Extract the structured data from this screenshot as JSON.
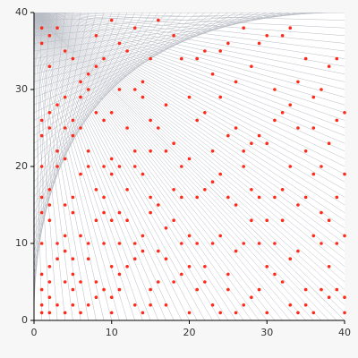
{
  "chart_data": {
    "type": "scatter",
    "color": "#ff2a1a",
    "xlim": [
      0,
      40
    ],
    "ylim": [
      0,
      40
    ],
    "xticks": [
      0,
      10,
      20,
      30,
      40
    ],
    "yticks": [
      0,
      10,
      20,
      30,
      40
    ],
    "points": [
      [
        1,
        1
      ],
      [
        1,
        2
      ],
      [
        1,
        4
      ],
      [
        1,
        6
      ],
      [
        1,
        10
      ],
      [
        1,
        14
      ],
      [
        1,
        16
      ],
      [
        1,
        20
      ],
      [
        1,
        24
      ],
      [
        1,
        26
      ],
      [
        1,
        36
      ],
      [
        1,
        38
      ],
      [
        2,
        1
      ],
      [
        2,
        3
      ],
      [
        2,
        5
      ],
      [
        2,
        7
      ],
      [
        2,
        13
      ],
      [
        2,
        15
      ],
      [
        2,
        17
      ],
      [
        2,
        25
      ],
      [
        2,
        27
      ],
      [
        2,
        33
      ],
      [
        2,
        37
      ],
      [
        3,
        2
      ],
      [
        3,
        8
      ],
      [
        3,
        10
      ],
      [
        3,
        20
      ],
      [
        3,
        22
      ],
      [
        3,
        28
      ],
      [
        3,
        38
      ],
      [
        4,
        1
      ],
      [
        4,
        5
      ],
      [
        4,
        9
      ],
      [
        4,
        11
      ],
      [
        4,
        15
      ],
      [
        4,
        21
      ],
      [
        4,
        25
      ],
      [
        4,
        29
      ],
      [
        4,
        35
      ],
      [
        5,
        2
      ],
      [
        5,
        4
      ],
      [
        5,
        6
      ],
      [
        5,
        8
      ],
      [
        5,
        14
      ],
      [
        5,
        16
      ],
      [
        5,
        24
      ],
      [
        5,
        26
      ],
      [
        5,
        34
      ],
      [
        6,
        1
      ],
      [
        6,
        5
      ],
      [
        6,
        11
      ],
      [
        6,
        19
      ],
      [
        6,
        25
      ],
      [
        6,
        29
      ],
      [
        6,
        31
      ],
      [
        7,
        2
      ],
      [
        7,
        8
      ],
      [
        7,
        10
      ],
      [
        7,
        20
      ],
      [
        7,
        22
      ],
      [
        7,
        30
      ],
      [
        7,
        32
      ],
      [
        8,
        3
      ],
      [
        8,
        5
      ],
      [
        8,
        13
      ],
      [
        8,
        17
      ],
      [
        8,
        27
      ],
      [
        8,
        33
      ],
      [
        8,
        37
      ],
      [
        9,
        4
      ],
      [
        9,
        10
      ],
      [
        9,
        14
      ],
      [
        9,
        16
      ],
      [
        9,
        20
      ],
      [
        9,
        26
      ],
      [
        9,
        34
      ],
      [
        10,
        1
      ],
      [
        10,
        3
      ],
      [
        10,
        7
      ],
      [
        10,
        13
      ],
      [
        10,
        19
      ],
      [
        10,
        21
      ],
      [
        10,
        27
      ],
      [
        10,
        39
      ],
      [
        11,
        4
      ],
      [
        11,
        6
      ],
      [
        11,
        10
      ],
      [
        11,
        14
      ],
      [
        11,
        20
      ],
      [
        11,
        30
      ],
      [
        11,
        36
      ],
      [
        12,
        7
      ],
      [
        12,
        13
      ],
      [
        12,
        17
      ],
      [
        12,
        25
      ],
      [
        12,
        35
      ],
      [
        13,
        2
      ],
      [
        13,
        8
      ],
      [
        13,
        10
      ],
      [
        13,
        20
      ],
      [
        13,
        22
      ],
      [
        13,
        30
      ],
      [
        13,
        38
      ],
      [
        14,
        1
      ],
      [
        14,
        9
      ],
      [
        14,
        11
      ],
      [
        14,
        19
      ],
      [
        14,
        29
      ],
      [
        14,
        31
      ],
      [
        15,
        2
      ],
      [
        15,
        4
      ],
      [
        15,
        14
      ],
      [
        15,
        16
      ],
      [
        15,
        22
      ],
      [
        15,
        26
      ],
      [
        15,
        34
      ],
      [
        16,
        5
      ],
      [
        16,
        9
      ],
      [
        16,
        15
      ],
      [
        16,
        25
      ],
      [
        16,
        39
      ],
      [
        17,
        2
      ],
      [
        17,
        8
      ],
      [
        17,
        12
      ],
      [
        17,
        22
      ],
      [
        17,
        28
      ],
      [
        18,
        5
      ],
      [
        18,
        13
      ],
      [
        18,
        17
      ],
      [
        18,
        23
      ],
      [
        18,
        37
      ],
      [
        19,
        6
      ],
      [
        19,
        10
      ],
      [
        19,
        16
      ],
      [
        19,
        20
      ],
      [
        19,
        34
      ],
      [
        20,
        1
      ],
      [
        20,
        7
      ],
      [
        20,
        11
      ],
      [
        20,
        21
      ],
      [
        20,
        29
      ],
      [
        21,
        4
      ],
      [
        21,
        10
      ],
      [
        21,
        16
      ],
      [
        21,
        26
      ],
      [
        21,
        34
      ],
      [
        22,
        5
      ],
      [
        22,
        7
      ],
      [
        22,
        17
      ],
      [
        22,
        27
      ],
      [
        22,
        35
      ],
      [
        23,
        2
      ],
      [
        23,
        10
      ],
      [
        23,
        18
      ],
      [
        23,
        22
      ],
      [
        23,
        32
      ],
      [
        24,
        1
      ],
      [
        24,
        11
      ],
      [
        24,
        19
      ],
      [
        24,
        29
      ],
      [
        24,
        35
      ],
      [
        25,
        4
      ],
      [
        25,
        6
      ],
      [
        25,
        16
      ],
      [
        25,
        24
      ],
      [
        25,
        36
      ],
      [
        26,
        1
      ],
      [
        26,
        9
      ],
      [
        26,
        15
      ],
      [
        26,
        25
      ],
      [
        26,
        31
      ],
      [
        27,
        2
      ],
      [
        27,
        10
      ],
      [
        27,
        20
      ],
      [
        27,
        22
      ],
      [
        27,
        38
      ],
      [
        28,
        3
      ],
      [
        28,
        13
      ],
      [
        28,
        17
      ],
      [
        28,
        23
      ],
      [
        28,
        33
      ],
      [
        29,
        4
      ],
      [
        29,
        10
      ],
      [
        29,
        16
      ],
      [
        29,
        24
      ],
      [
        29,
        36
      ],
      [
        30,
        1
      ],
      [
        30,
        7
      ],
      [
        30,
        13
      ],
      [
        30,
        23
      ],
      [
        30,
        37
      ],
      [
        31,
        6
      ],
      [
        31,
        10
      ],
      [
        31,
        16
      ],
      [
        31,
        26
      ],
      [
        31,
        30
      ],
      [
        32,
        5
      ],
      [
        32,
        13
      ],
      [
        32,
        17
      ],
      [
        32,
        27
      ],
      [
        32,
        37
      ],
      [
        33,
        2
      ],
      [
        33,
        8
      ],
      [
        33,
        20
      ],
      [
        33,
        28
      ],
      [
        33,
        38
      ],
      [
        34,
        1
      ],
      [
        34,
        9
      ],
      [
        34,
        15
      ],
      [
        34,
        25
      ],
      [
        34,
        31
      ],
      [
        35,
        2
      ],
      [
        35,
        4
      ],
      [
        35,
        16
      ],
      [
        35,
        22
      ],
      [
        35,
        34
      ],
      [
        36,
        1
      ],
      [
        36,
        11
      ],
      [
        36,
        19
      ],
      [
        36,
        25
      ],
      [
        36,
        29
      ],
      [
        37,
        4
      ],
      [
        37,
        10
      ],
      [
        37,
        14
      ],
      [
        37,
        20
      ],
      [
        37,
        30
      ],
      [
        38,
        3
      ],
      [
        38,
        7
      ],
      [
        38,
        13
      ],
      [
        38,
        23
      ],
      [
        38,
        33
      ],
      [
        39,
        4
      ],
      [
        39,
        10
      ],
      [
        39,
        16
      ],
      [
        39,
        26
      ],
      [
        39,
        34
      ],
      [
        40,
        1
      ],
      [
        40,
        3
      ],
      [
        40,
        11
      ],
      [
        40,
        19
      ],
      [
        40,
        27
      ]
    ]
  }
}
